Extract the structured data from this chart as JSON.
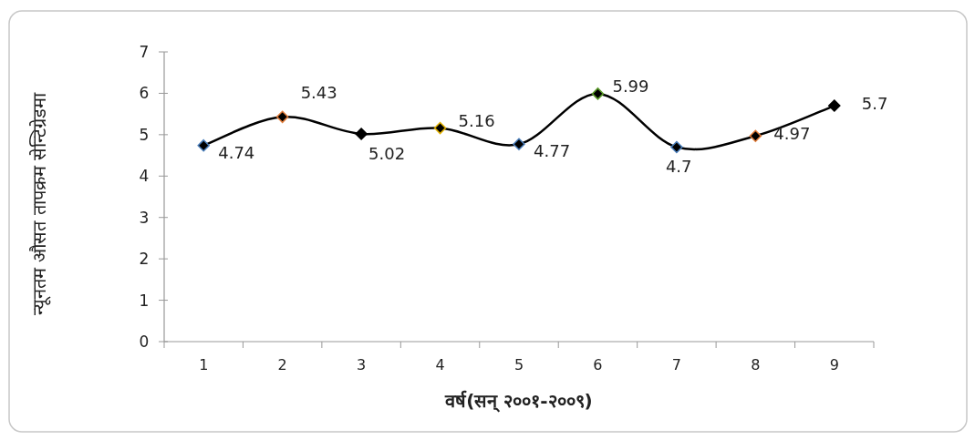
{
  "chart_data": {
    "type": "line",
    "xlabel": "वर्ष(सन् २००१-२००९)",
    "ylabel": "न्यूनतम औसत तापक्रम सेन्टिग्रेडमा",
    "categories": [
      "1",
      "2",
      "3",
      "4",
      "5",
      "6",
      "7",
      "8",
      "9"
    ],
    "series": [
      {
        "color": "#000000",
        "values": [
          4.74,
          5.43,
          5.02,
          5.16,
          4.77,
          5.99,
          4.7,
          4.97,
          5.7
        ],
        "colors": [
          "#4a7ebb",
          "#e07b39",
          "#000000",
          "#e0b000",
          "#4a7ebb",
          "#5a9a2a",
          "#4a7ebb",
          "#e07b39",
          "#000000"
        ]
      }
    ],
    "ylim": [
      0,
      7
    ],
    "yticks": [
      0,
      1,
      2,
      3,
      4,
      5,
      6,
      7
    ],
    "marker": "diamond",
    "data_labels": true
  }
}
